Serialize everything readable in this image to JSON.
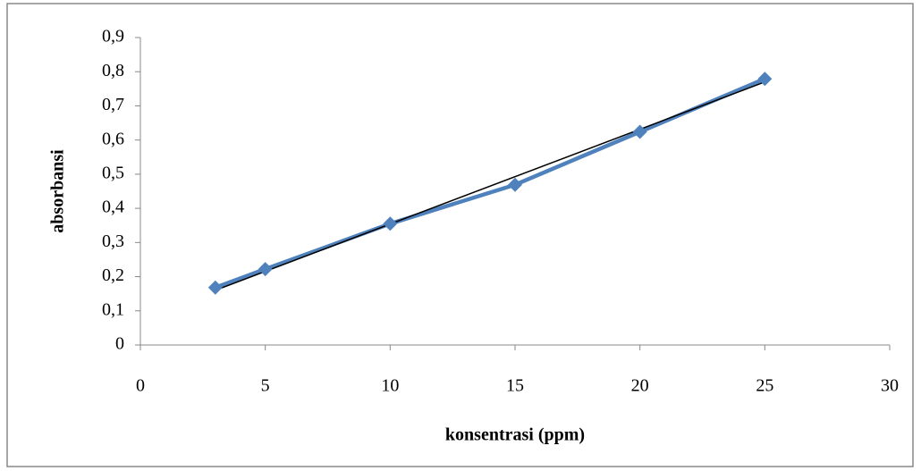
{
  "chart_data": {
    "type": "line",
    "x_label": "konsentrasi (ppm)",
    "y_label": "absorbansi",
    "x": [
      3,
      5,
      10,
      15,
      20,
      25
    ],
    "series": [
      {
        "color": "#4f81bd",
        "values": [
          0.168,
          0.222,
          0.355,
          0.469,
          0.624,
          0.779
        ]
      }
    ],
    "trendline": {
      "color": "#000000",
      "x": [
        3,
        25
      ],
      "values": [
        0.16,
        0.77
      ]
    },
    "marker": "diamond",
    "xlim": [
      0,
      30
    ],
    "xticks": [
      0,
      5,
      10,
      15,
      20,
      25,
      30
    ],
    "ylim": [
      0,
      0.9
    ],
    "yticks": [
      0,
      {
        "value": 0.1,
        "label": "0,1"
      },
      {
        "value": 0.2,
        "label": "0,2"
      },
      {
        "value": 0.3,
        "label": "0,3"
      },
      {
        "value": 0.4,
        "label": "0,4"
      },
      {
        "value": 0.5,
        "label": "0,5"
      },
      {
        "value": 0.6,
        "label": "0,6"
      },
      {
        "value": 0.7,
        "label": "0,7"
      },
      {
        "value": 0.8,
        "label": "0,8"
      },
      {
        "value": 0.9,
        "label": "0,9"
      }
    ],
    "grid": false
  }
}
